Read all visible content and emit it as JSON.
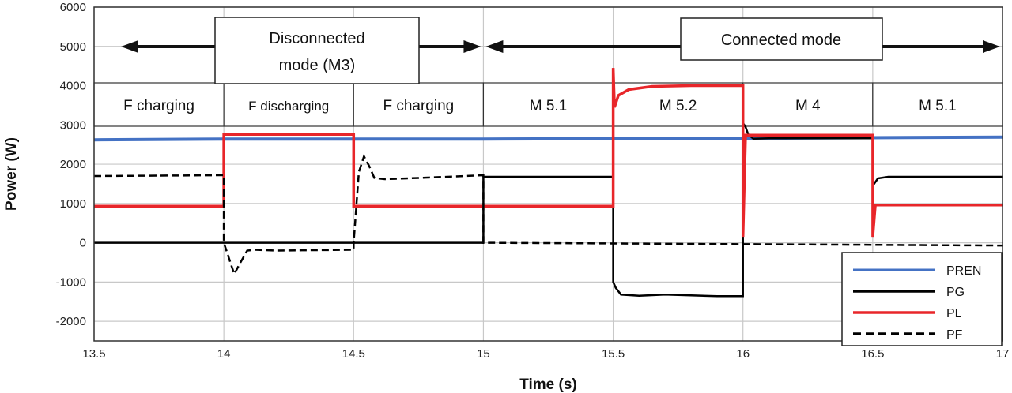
{
  "chart_data": {
    "type": "line",
    "xlabel": "Time (s)",
    "ylabel": "Power (W)",
    "xlim": [
      13.5,
      17
    ],
    "ylim": [
      -2500,
      6000
    ],
    "xticks": [
      "13.5",
      "14",
      "14.5",
      "15",
      "15.5",
      "16",
      "16.5",
      "17"
    ],
    "yticks": [
      "6000",
      "5000",
      "4000",
      "3000",
      "2000",
      "1000",
      "0",
      "-1000",
      "-2000"
    ],
    "grid": true,
    "legend": {
      "placement": "bottom-right",
      "entries": [
        {
          "label": "PREN",
          "color": "#4472c4",
          "dash": false
        },
        {
          "label": "PG",
          "color": "#000000",
          "dash": false
        },
        {
          "label": "PL",
          "color": "#e8262a",
          "dash": false
        },
        {
          "label": "PF",
          "color": "#000000",
          "dash": true
        }
      ]
    },
    "banners": [
      {
        "text_lines": [
          "Disconnected",
          "mode (M3)"
        ],
        "arrow_range": [
          13.5,
          15
        ]
      },
      {
        "text_lines": [
          "Connected mode"
        ],
        "arrow_range": [
          15,
          17
        ]
      }
    ],
    "modes": [
      {
        "label": "F charging",
        "range": [
          13.5,
          14
        ]
      },
      {
        "label": "F discharging",
        "range": [
          14,
          14.5
        ]
      },
      {
        "label": "F charging",
        "range": [
          14.5,
          15
        ]
      },
      {
        "label": "M 5.1",
        "range": [
          15,
          15.5
        ]
      },
      {
        "label": "M 5.2",
        "range": [
          15.5,
          16
        ]
      },
      {
        "label": "M 4",
        "range": [
          16,
          16.5
        ]
      },
      {
        "label": "M 5.1",
        "range": [
          16.5,
          17
        ]
      }
    ],
    "series": [
      {
        "name": "PREN",
        "color": "#4472c4",
        "width": 4,
        "dash": false,
        "points": [
          [
            13.5,
            2620
          ],
          [
            14,
            2640
          ],
          [
            15,
            2640
          ],
          [
            16,
            2660
          ],
          [
            17,
            2690
          ]
        ]
      },
      {
        "name": "PG",
        "color": "#000000",
        "width": 2.5,
        "dash": false,
        "points": [
          [
            13.5,
            0
          ],
          [
            15,
            0
          ],
          [
            15,
            1680
          ],
          [
            15.5,
            1680
          ],
          [
            15.5,
            -1000
          ],
          [
            15.51,
            -1150
          ],
          [
            15.53,
            -1320
          ],
          [
            15.6,
            -1350
          ],
          [
            15.7,
            -1320
          ],
          [
            15.8,
            -1340
          ],
          [
            15.9,
            -1360
          ],
          [
            16,
            -1360
          ],
          [
            16,
            3050
          ],
          [
            16.01,
            2950
          ],
          [
            16.02,
            2760
          ],
          [
            16.04,
            2650
          ],
          [
            16.1,
            2660
          ],
          [
            16.5,
            2660
          ],
          [
            16.5,
            1450
          ],
          [
            16.52,
            1640
          ],
          [
            16.56,
            1680
          ],
          [
            17,
            1680
          ]
        ]
      },
      {
        "name": "PL",
        "color": "#e8262a",
        "width": 3.5,
        "dash": false,
        "points": [
          [
            13.5,
            930
          ],
          [
            14,
            930
          ],
          [
            14,
            2760
          ],
          [
            14.5,
            2760
          ],
          [
            14.5,
            930
          ],
          [
            15.5,
            930
          ],
          [
            15.5,
            4450
          ],
          [
            15.505,
            3450
          ],
          [
            15.52,
            3750
          ],
          [
            15.56,
            3900
          ],
          [
            15.65,
            3980
          ],
          [
            15.8,
            4000
          ],
          [
            16,
            4000
          ],
          [
            16,
            150
          ],
          [
            16.01,
            2740
          ],
          [
            16.5,
            2740
          ],
          [
            16.5,
            150
          ],
          [
            16.51,
            960
          ],
          [
            17,
            960
          ]
        ]
      },
      {
        "name": "PF",
        "color": "#000000",
        "width": 2.5,
        "dash": true,
        "points": [
          [
            13.5,
            1700
          ],
          [
            14,
            1720
          ],
          [
            14,
            0
          ],
          [
            14.02,
            -400
          ],
          [
            14.04,
            -800
          ],
          [
            14.06,
            -550
          ],
          [
            14.09,
            -200
          ],
          [
            14.12,
            -180
          ],
          [
            14.2,
            -200
          ],
          [
            14.5,
            -180
          ],
          [
            14.5,
            0
          ],
          [
            14.52,
            1800
          ],
          [
            14.54,
            2200
          ],
          [
            14.56,
            1950
          ],
          [
            14.58,
            1650
          ],
          [
            14.62,
            1620
          ],
          [
            14.75,
            1650
          ],
          [
            15,
            1720
          ],
          [
            15,
            0
          ],
          [
            17,
            -70
          ]
        ]
      }
    ]
  }
}
